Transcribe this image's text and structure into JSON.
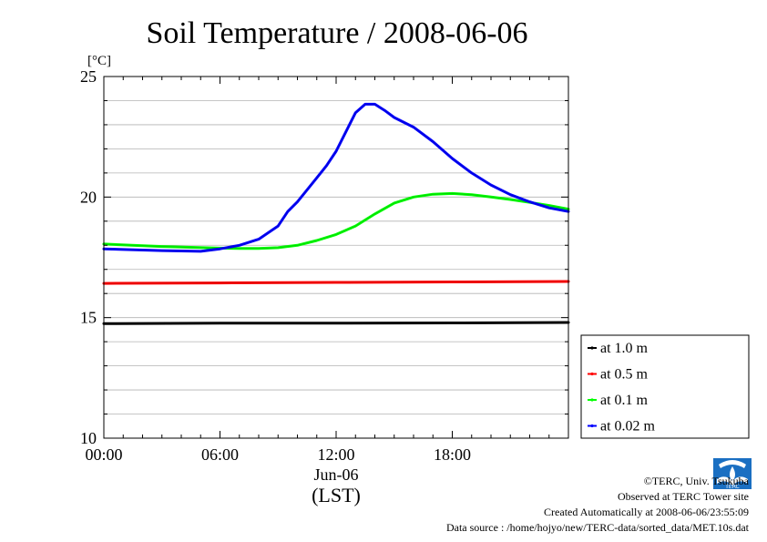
{
  "chart_data": {
    "type": "line",
    "title": "Soil Temperature / 2008-06-06",
    "ylabel": "[°C]",
    "xlabel": "(LST)",
    "date_label": "Jun-06",
    "ylim": [
      10,
      25
    ],
    "xlim": [
      0,
      24
    ],
    "y_ticks": [
      "10",
      "15",
      "20",
      "25"
    ],
    "x_ticks": [
      "00:00",
      "06:00",
      "12:00",
      "18:00"
    ],
    "grid": true,
    "legend_position": "bottom-right-outside",
    "series": [
      {
        "name": "at 1.0 m",
        "color": "#000000",
        "x": [
          0,
          6,
          12,
          18,
          24
        ],
        "y": [
          14.75,
          14.77,
          14.77,
          14.78,
          14.8
        ]
      },
      {
        "name": "at 0.5 m",
        "color": "#ff0000",
        "x": [
          0,
          6,
          12,
          18,
          24
        ],
        "y": [
          16.42,
          16.44,
          16.46,
          16.48,
          16.5
        ]
      },
      {
        "name": "at 0.1 m",
        "color": "#00ff00",
        "x": [
          0,
          3,
          6,
          7,
          8,
          9,
          10,
          11,
          12,
          13,
          14,
          15,
          16,
          17,
          18,
          19,
          20,
          21,
          22,
          23,
          24
        ],
        "y": [
          18.05,
          17.95,
          17.88,
          17.87,
          17.87,
          17.9,
          18.0,
          18.2,
          18.45,
          18.8,
          19.3,
          19.75,
          20.0,
          20.12,
          20.15,
          20.1,
          20.0,
          19.9,
          19.78,
          19.65,
          19.5
        ]
      },
      {
        "name": "at 0.02 m",
        "color": "#0000ff",
        "x": [
          0,
          3,
          5,
          6,
          7,
          8,
          9,
          9.5,
          10,
          10.5,
          11,
          11.5,
          12,
          12.5,
          13,
          13.5,
          14,
          14.5,
          15,
          16,
          17,
          18,
          19,
          20,
          21,
          22,
          23,
          24
        ],
        "y": [
          17.85,
          17.78,
          17.75,
          17.85,
          18.0,
          18.25,
          18.8,
          19.4,
          19.8,
          20.3,
          20.8,
          21.3,
          21.9,
          22.7,
          23.5,
          23.85,
          23.85,
          23.6,
          23.3,
          22.9,
          22.3,
          21.6,
          21.0,
          20.5,
          20.1,
          19.8,
          19.55,
          19.4
        ]
      }
    ]
  },
  "credits": {
    "copyright": "©TERC, Univ. Tsukuba",
    "site": "Observed at TERC Tower site",
    "created": "Created Automatically at 2008-06-06/23:55:09",
    "source": "Data source : /home/hojyo/new/TERC-data/sorted_data/MET.10s.dat",
    "logo_text": "TERC"
  }
}
